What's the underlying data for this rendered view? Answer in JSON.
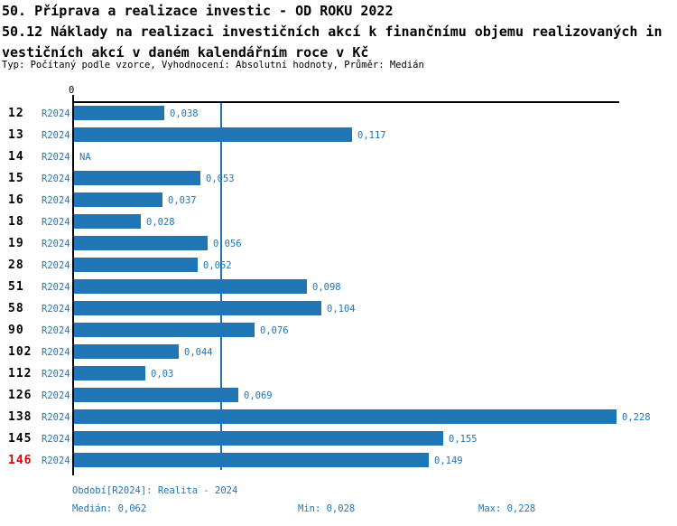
{
  "header": {
    "title_line1": "50. Příprava a realizace investic - OD ROKU 2022",
    "title_line2": "50.12 Náklady na realizaci investičních akcí k finančnímu objemu realizovaných in",
    "title_line3": "vestičních akcí v daném kalendářním roce v Kč",
    "meta_line": "Typ: Počítaný podle vzorce, Vyhodnocení: Absolutní hodnoty, Průměr: Medián"
  },
  "chart_data": {
    "type": "bar",
    "orientation": "horizontal",
    "title": "50.12 Náklady na realizaci investičních akcí k finančnímu objemu realizovaných investičních akcí v daném kalendářním roce v Kč",
    "series_label": "R2024",
    "axis_zero_label": "0",
    "xlim": [
      0,
      0.23
    ],
    "grid": false,
    "categories": [
      "12",
      "13",
      "14",
      "15",
      "16",
      "18",
      "19",
      "28",
      "51",
      "58",
      "90",
      "102",
      "112",
      "126",
      "138",
      "145",
      "146"
    ],
    "values": [
      0.038,
      0.117,
      null,
      0.053,
      0.037,
      0.028,
      0.056,
      0.052,
      0.098,
      0.104,
      0.076,
      0.044,
      0.03,
      0.069,
      0.228,
      0.155,
      0.149
    ],
    "value_labels": [
      "0,038",
      "0,117",
      "NA",
      "0,053",
      "0,037",
      "0,028",
      "0,056",
      "0,052",
      "0,098",
      "0,104",
      "0,076",
      "0,044",
      "0,03",
      "0,069",
      "0,228",
      "0,155",
      "0,149"
    ],
    "highlight_category": "146",
    "median_value": 0.062,
    "colors": {
      "bar": "#2076b4",
      "label_blue": "#2076b4",
      "highlight_red": "#dd0000",
      "axis_black": "#000000",
      "median_line": "#2076b4"
    }
  },
  "footer": {
    "period_line": "Období[R2024]: Realita - 2024",
    "median": "Medián: 0,062",
    "min": "Min: 0,028",
    "max": "Max: 0,228"
  }
}
